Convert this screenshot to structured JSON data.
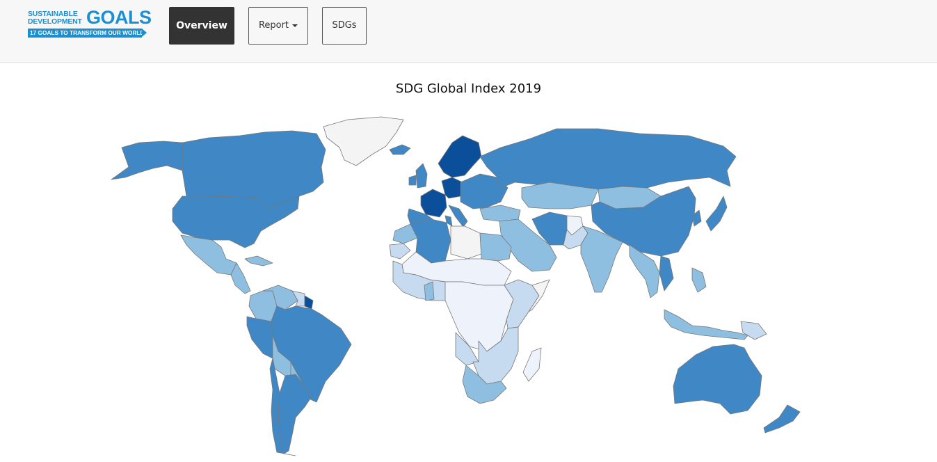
{
  "logo": {
    "line1": "SUSTAINABLE",
    "line2": "DEVELOPMENT",
    "word": "GOALS",
    "tagline": "17 GOALS TO TRANSFORM OUR WORLD"
  },
  "nav": {
    "overview": "Overview",
    "report": "Report",
    "sdgs": "SDGs"
  },
  "map": {
    "title": "SDG Global Index 2019",
    "color_scale": [
      "#f4f4f4",
      "#eef3fb",
      "#c6dbef",
      "#8fbfe0",
      "#3f88c5",
      "#0b4f9a"
    ],
    "regions": [
      {
        "name": "Greenland",
        "level": 0
      },
      {
        "name": "Canada",
        "level": 4
      },
      {
        "name": "Alaska",
        "level": 4
      },
      {
        "name": "USA",
        "level": 4
      },
      {
        "name": "Mexico",
        "level": 3
      },
      {
        "name": "Central America",
        "level": 3
      },
      {
        "name": "Cuba",
        "level": 3
      },
      {
        "name": "Colombia",
        "level": 3
      },
      {
        "name": "Venezuela",
        "level": 3
      },
      {
        "name": "Guyana",
        "level": 2
      },
      {
        "name": "French Guiana",
        "level": 5
      },
      {
        "name": "Brazil",
        "level": 4
      },
      {
        "name": "Peru",
        "level": 4
      },
      {
        "name": "Bolivia",
        "level": 3
      },
      {
        "name": "Paraguay",
        "level": 3
      },
      {
        "name": "Argentina",
        "level": 4
      },
      {
        "name": "Chile",
        "level": 4
      },
      {
        "name": "Iceland",
        "level": 4
      },
      {
        "name": "UK",
        "level": 4
      },
      {
        "name": "Ireland",
        "level": 4
      },
      {
        "name": "Scandinavia",
        "level": 5
      },
      {
        "name": "France",
        "level": 5
      },
      {
        "name": "Germany",
        "level": 5
      },
      {
        "name": "Spain",
        "level": 4
      },
      {
        "name": "Italy",
        "level": 4
      },
      {
        "name": "Eastern Europe",
        "level": 4
      },
      {
        "name": "Russia",
        "level": 4
      },
      {
        "name": "Kazakhstan",
        "level": 3
      },
      {
        "name": "Mongolia",
        "level": 3
      },
      {
        "name": "China",
        "level": 4
      },
      {
        "name": "Japan",
        "level": 4
      },
      {
        "name": "Korea",
        "level": 4
      },
      {
        "name": "Turkey",
        "level": 3
      },
      {
        "name": "Middle East",
        "level": 3
      },
      {
        "name": "Iran",
        "level": 4
      },
      {
        "name": "Afghanistan",
        "level": 1
      },
      {
        "name": "Pakistan",
        "level": 2
      },
      {
        "name": "India",
        "level": 3
      },
      {
        "name": "Southeast Asia",
        "level": 3
      },
      {
        "name": "Vietnam",
        "level": 4
      },
      {
        "name": "Indonesia",
        "level": 3
      },
      {
        "name": "Philippines",
        "level": 3
      },
      {
        "name": "Papua New Guinea",
        "level": 2
      },
      {
        "name": "Morocco",
        "level": 3
      },
      {
        "name": "Western Sahara",
        "level": 2
      },
      {
        "name": "Algeria",
        "level": 4
      },
      {
        "name": "Tunisia",
        "level": 4
      },
      {
        "name": "Libya",
        "level": 0
      },
      {
        "name": "Egypt",
        "level": 3
      },
      {
        "name": "Sahel",
        "level": 1
      },
      {
        "name": "West Africa",
        "level": 2
      },
      {
        "name": "Ghana",
        "level": 3
      },
      {
        "name": "Central Africa",
        "level": 1
      },
      {
        "name": "East Africa",
        "level": 2
      },
      {
        "name": "Somalia",
        "level": 0
      },
      {
        "name": "Angola",
        "level": 2
      },
      {
        "name": "Southern Africa",
        "level": 2
      },
      {
        "name": "South Africa",
        "level": 3
      },
      {
        "name": "Madagascar",
        "level": 1
      },
      {
        "name": "Australia",
        "level": 4
      },
      {
        "name": "New Zealand",
        "level": 4
      }
    ]
  }
}
